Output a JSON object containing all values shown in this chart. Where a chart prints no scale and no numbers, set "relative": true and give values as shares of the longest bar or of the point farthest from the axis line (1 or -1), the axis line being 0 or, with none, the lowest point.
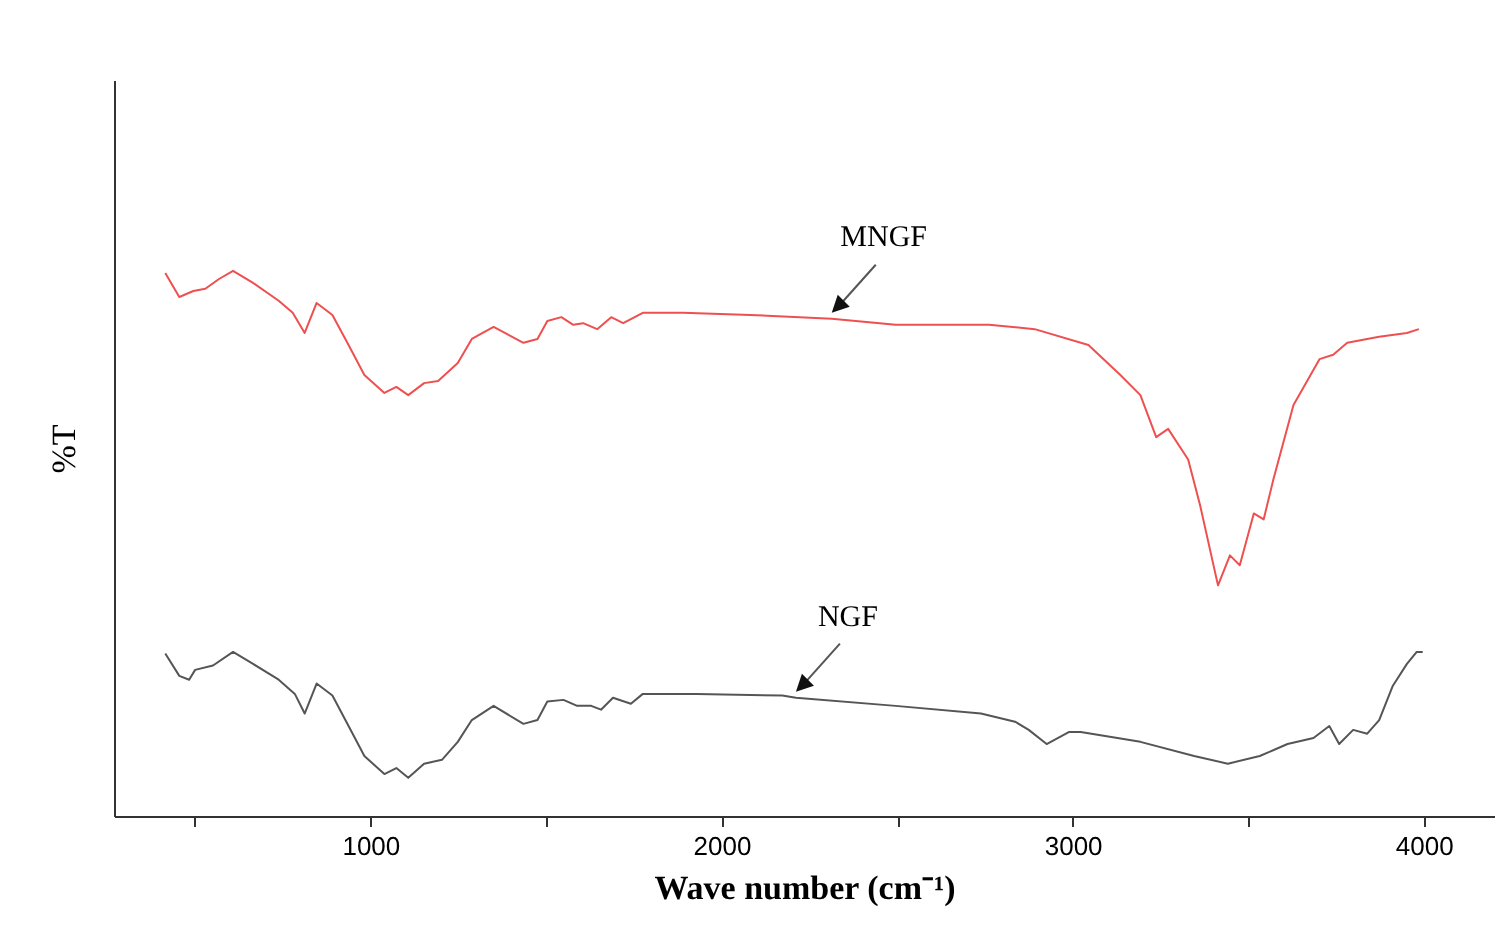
{
  "chart_data": {
    "type": "line",
    "xlabel": "Wave number (cm⁻¹)",
    "ylabel": "%T",
    "relative": true,
    "xlim": [
      270,
      4200
    ],
    "xticks": [
      {
        "value": 500,
        "label": null
      },
      1000,
      {
        "value": 1500,
        "label": null
      },
      2000,
      {
        "value": 2500,
        "label": null
      },
      3000,
      {
        "value": 3500,
        "label": null
      },
      4000
    ],
    "grid": false,
    "legend": false,
    "marker": "none",
    "line_style": "solid",
    "series": [
      {
        "name": "MNGF",
        "color": "#ee5050",
        "x": [
          416,
          456,
          496,
          530,
          569,
          609,
          666,
          739,
          779,
          813,
          847,
          892,
          938,
          983,
          1040,
          1074,
          1108,
          1153,
          1193,
          1249,
          1289,
          1351,
          1436,
          1476,
          1504,
          1544,
          1578,
          1606,
          1646,
          1686,
          1720,
          1776,
          1890,
          2082,
          2314,
          2496,
          2762,
          2892,
          3045,
          3136,
          3193,
          3238,
          3272,
          3329,
          3363,
          3414,
          3448,
          3476,
          3516,
          3544,
          3572,
          3629,
          3703,
          3742,
          3782,
          3873,
          3952,
          3986
        ],
        "values": [
          0.996,
          0.952,
          0.963,
          0.967,
          0.985,
          1,
          0.978,
          0.945,
          0.923,
          0.886,
          0.941,
          0.919,
          0.864,
          0.809,
          0.776,
          0.787,
          0.772,
          0.794,
          0.798,
          0.831,
          0.875,
          0.897,
          0.868,
          0.875,
          0.908,
          0.915,
          0.901,
          0.904,
          0.893,
          0.915,
          0.904,
          0.923,
          0.923,
          0.919,
          0.912,
          0.901,
          0.901,
          0.893,
          0.864,
          0.809,
          0.772,
          0.695,
          0.71,
          0.654,
          0.57,
          0.423,
          0.478,
          0.46,
          0.555,
          0.544,
          0.618,
          0.754,
          0.838,
          0.846,
          0.868,
          0.879,
          0.886,
          0.893
        ]
      },
      {
        "name": "NGF",
        "color": "#555555",
        "x": [
          416,
          456,
          484,
          501,
          552,
          609,
          666,
          739,
          785,
          813,
          847,
          892,
          938,
          983,
          1040,
          1074,
          1108,
          1153,
          1204,
          1249,
          1289,
          1351,
          1436,
          1476,
          1504,
          1550,
          1589,
          1629,
          1657,
          1691,
          1742,
          1776,
          1929,
          2173,
          2212,
          2496,
          2739,
          2836,
          2875,
          2926,
          2989,
          3023,
          3193,
          3346,
          3442,
          3533,
          3612,
          3686,
          3731,
          3759,
          3799,
          3839,
          3873,
          3912,
          3952,
          3980,
          3997
        ],
        "values": [
          0.298,
          0.257,
          0.25,
          0.268,
          0.276,
          0.301,
          0.279,
          0.25,
          0.224,
          0.188,
          0.243,
          0.221,
          0.165,
          0.11,
          0.077,
          0.088,
          0.07,
          0.096,
          0.103,
          0.136,
          0.176,
          0.202,
          0.169,
          0.176,
          0.21,
          0.213,
          0.202,
          0.202,
          0.195,
          0.217,
          0.206,
          0.224,
          0.224,
          0.221,
          0.217,
          0.202,
          0.188,
          0.173,
          0.158,
          0.132,
          0.154,
          0.154,
          0.136,
          0.11,
          0.096,
          0.11,
          0.132,
          0.143,
          0.165,
          0.132,
          0.158,
          0.151,
          0.176,
          0.239,
          0.279,
          0.301,
          0.301
        ]
      }
    ]
  }
}
